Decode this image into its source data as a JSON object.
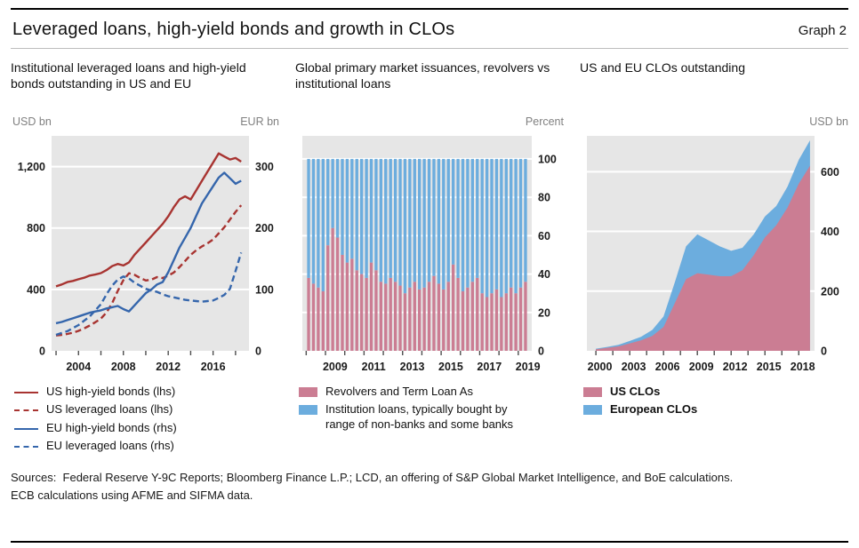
{
  "figure": {
    "title": "Leveraged loans, high-yield bonds and growth in CLOs",
    "graph_label": "Graph 2",
    "sources": [
      "Sources:  Federal Reserve Y-9C Reports; Bloomberg Finance L.P.; LCD, an offering of S&P Global Market Intelligence, and BoE calculations.",
      "ECB calculations using AFME and SIFMA data."
    ]
  },
  "colors": {
    "red": "#a83431",
    "blue": "#3566ac",
    "pink": "#cb7d93",
    "lightblue": "#6cadde",
    "plot_bg": "#e6e6e6",
    "grid": "#ffffff",
    "tick": "#4d4d4d",
    "text": "#1a1a1a",
    "unit": "#808080"
  },
  "chart_data": [
    {
      "type": "line",
      "title": "Institutional leveraged loans and high-yield bonds outstanding in US and EU",
      "left_axis_label": "USD bn",
      "right_axis_label": "EUR bn",
      "x_range": [
        2001.6,
        2019.2
      ],
      "x_tick_start": 2002,
      "x_tick_end": 2018,
      "x_ticks_step": 2,
      "x_label_years": [
        2004,
        2008,
        2012,
        2016
      ],
      "left_max": 1400,
      "right_max": 350,
      "left_tick_values": [
        0,
        400,
        800,
        1200
      ],
      "left_tick_labels": [
        "0",
        "400",
        "800",
        "1,200"
      ],
      "right_tick_labels": [
        "0",
        "100",
        "200",
        "300"
      ],
      "series": [
        {
          "name": "US high-yield bonds (lhs)",
          "axis": "left",
          "style": "solid",
          "color": "red",
          "points": [
            [
              2002,
              420
            ],
            [
              2002.5,
              432
            ],
            [
              2003,
              448
            ],
            [
              2003.5,
              455
            ],
            [
              2004,
              466
            ],
            [
              2004.5,
              476
            ],
            [
              2005,
              490
            ],
            [
              2005.5,
              497
            ],
            [
              2006,
              506
            ],
            [
              2006.5,
              526
            ],
            [
              2007,
              552
            ],
            [
              2007.5,
              566
            ],
            [
              2008,
              556
            ],
            [
              2008.5,
              576
            ],
            [
              2009,
              626
            ],
            [
              2009.5,
              666
            ],
            [
              2010,
              706
            ],
            [
              2010.5,
              746
            ],
            [
              2011,
              786
            ],
            [
              2011.5,
              826
            ],
            [
              2012,
              876
            ],
            [
              2012.5,
              936
            ],
            [
              2013,
              986
            ],
            [
              2013.5,
              1006
            ],
            [
              2014,
              986
            ],
            [
              2014.5,
              1046
            ],
            [
              2015,
              1106
            ],
            [
              2015.5,
              1166
            ],
            [
              2016,
              1226
            ],
            [
              2016.5,
              1286
            ],
            [
              2017,
              1266
            ],
            [
              2017.5,
              1246
            ],
            [
              2018,
              1256
            ],
            [
              2018.5,
              1232
            ]
          ]
        },
        {
          "name": "US leveraged loans (lhs)",
          "axis": "left",
          "style": "dashed",
          "color": "red",
          "points": [
            [
              2002,
              100
            ],
            [
              2002.5,
              104
            ],
            [
              2003,
              110
            ],
            [
              2003.5,
              118
            ],
            [
              2004,
              130
            ],
            [
              2004.5,
              146
            ],
            [
              2005,
              165
            ],
            [
              2005.5,
              186
            ],
            [
              2006,
              210
            ],
            [
              2006.5,
              250
            ],
            [
              2007,
              310
            ],
            [
              2007.5,
              390
            ],
            [
              2008,
              460
            ],
            [
              2008.5,
              505
            ],
            [
              2009,
              495
            ],
            [
              2009.5,
              475
            ],
            [
              2010,
              458
            ],
            [
              2010.5,
              464
            ],
            [
              2011,
              480
            ],
            [
              2011.5,
              474
            ],
            [
              2012,
              490
            ],
            [
              2012.5,
              510
            ],
            [
              2013,
              545
            ],
            [
              2013.5,
              585
            ],
            [
              2014,
              625
            ],
            [
              2014.5,
              655
            ],
            [
              2015,
              680
            ],
            [
              2015.5,
              700
            ],
            [
              2016,
              725
            ],
            [
              2016.5,
              765
            ],
            [
              2017,
              805
            ],
            [
              2017.5,
              855
            ],
            [
              2018,
              905
            ],
            [
              2018.5,
              948
            ]
          ]
        },
        {
          "name": "EU high-yield bonds (rhs)",
          "axis": "right",
          "style": "solid",
          "color": "blue",
          "points": [
            [
              2002,
              45
            ],
            [
              2002.5,
              47
            ],
            [
              2003,
              50
            ],
            [
              2003.5,
              53
            ],
            [
              2004,
              56
            ],
            [
              2004.5,
              59
            ],
            [
              2005,
              62
            ],
            [
              2005.5,
              64
            ],
            [
              2006,
              66
            ],
            [
              2006.5,
              69
            ],
            [
              2007,
              71
            ],
            [
              2007.5,
              73
            ],
            [
              2008,
              68
            ],
            [
              2008.5,
              64
            ],
            [
              2009,
              74
            ],
            [
              2009.5,
              84
            ],
            [
              2010,
              94
            ],
            [
              2010.5,
              100
            ],
            [
              2011,
              108
            ],
            [
              2011.5,
              112
            ],
            [
              2012,
              128
            ],
            [
              2012.5,
              148
            ],
            [
              2013,
              168
            ],
            [
              2013.5,
              184
            ],
            [
              2014,
              200
            ],
            [
              2014.5,
              220
            ],
            [
              2015,
              240
            ],
            [
              2015.5,
              254
            ],
            [
              2016,
              268
            ],
            [
              2016.5,
              282
            ],
            [
              2017,
              290
            ],
            [
              2017.5,
              281
            ],
            [
              2018,
              272
            ],
            [
              2018.5,
              277
            ]
          ]
        },
        {
          "name": "EU leveraged loans (rhs)",
          "axis": "right",
          "style": "dashed",
          "color": "blue",
          "points": [
            [
              2002,
              26
            ],
            [
              2002.5,
              29
            ],
            [
              2003,
              32
            ],
            [
              2003.5,
              37
            ],
            [
              2004,
              42
            ],
            [
              2004.5,
              49
            ],
            [
              2005,
              56
            ],
            [
              2005.5,
              66
            ],
            [
              2006,
              76
            ],
            [
              2006.5,
              92
            ],
            [
              2007,
              106
            ],
            [
              2007.5,
              116
            ],
            [
              2008,
              121
            ],
            [
              2008.5,
              118
            ],
            [
              2009,
              111
            ],
            [
              2009.5,
              106
            ],
            [
              2010,
              101
            ],
            [
              2010.5,
              98
            ],
            [
              2011,
              96
            ],
            [
              2011.5,
              92
            ],
            [
              2012,
              89
            ],
            [
              2012.5,
              87
            ],
            [
              2013,
              85
            ],
            [
              2013.5,
              83
            ],
            [
              2014,
              82
            ],
            [
              2014.5,
              81
            ],
            [
              2015,
              80
            ],
            [
              2015.5,
              81
            ],
            [
              2016,
              82
            ],
            [
              2016.5,
              86
            ],
            [
              2017,
              91
            ],
            [
              2017.5,
              101
            ],
            [
              2018,
              130
            ],
            [
              2018.5,
              160
            ]
          ]
        }
      ]
    },
    {
      "type": "stacked-bar-percent",
      "title": "Global primary market issuances, revolvers vs institutional loans",
      "right_axis_label": "Percent",
      "x_range": [
        2007.8,
        2019.7
      ],
      "bar_start_year": 2008,
      "bars_per_year": 4,
      "x_tick_start": 2008,
      "x_tick_end": 2019,
      "x_ticks_step": 1,
      "x_label_years": [
        2009,
        2011,
        2013,
        2015,
        2017,
        2019
      ],
      "y_max": 112,
      "y_tick_values": [
        0,
        20,
        40,
        60,
        80,
        100
      ],
      "total": 100,
      "revolver_share_pct": [
        38,
        35,
        33,
        31,
        55,
        64,
        59,
        50,
        46,
        48,
        42,
        40,
        38,
        46,
        42,
        36,
        35,
        38,
        36,
        34,
        30,
        33,
        36,
        32,
        33,
        36,
        39,
        35,
        32,
        36,
        45,
        38,
        31,
        33,
        36,
        38,
        30,
        28,
        30,
        32,
        28,
        30,
        33,
        30,
        33,
        36
      ],
      "legend": [
        {
          "label": "Revolvers and Term Loan As",
          "color": "pink"
        },
        {
          "label": "Institution loans, typically bought by range of non-banks and some banks",
          "color": "lightblue"
        }
      ]
    },
    {
      "type": "stacked-area",
      "title": "US and EU CLOs outstanding",
      "right_axis_label": "USD bn",
      "x_range": [
        1999.2,
        2019.4
      ],
      "x_tick_start": 2000,
      "x_tick_end": 2019,
      "x_ticks_step": 1.5,
      "x_label_years": [
        2000,
        2003,
        2006,
        2009,
        2012,
        2015,
        2018
      ],
      "y_max": 720,
      "y_tick_values": [
        0,
        200,
        400,
        600
      ],
      "years": [
        2000,
        2001,
        2002,
        2003,
        2004,
        2005,
        2006,
        2007,
        2008,
        2009,
        2010,
        2011,
        2012,
        2013,
        2014,
        2015,
        2016,
        2017,
        2018,
        2019
      ],
      "series": [
        {
          "name": "US CLOs",
          "color": "pink",
          "values": [
            5,
            10,
            15,
            25,
            35,
            50,
            80,
            160,
            240,
            260,
            255,
            250,
            250,
            270,
            320,
            380,
            420,
            480,
            560,
            620
          ]
        },
        {
          "name": "European CLOs",
          "color": "lightblue",
          "values": [
            2,
            3,
            5,
            8,
            12,
            20,
            35,
            70,
            110,
            130,
            115,
            100,
            85,
            75,
            70,
            70,
            65,
            70,
            80,
            85
          ]
        }
      ],
      "legend": [
        {
          "label": "US CLOs",
          "color": "pink"
        },
        {
          "label": "European CLOs",
          "color": "lightblue"
        }
      ]
    }
  ]
}
